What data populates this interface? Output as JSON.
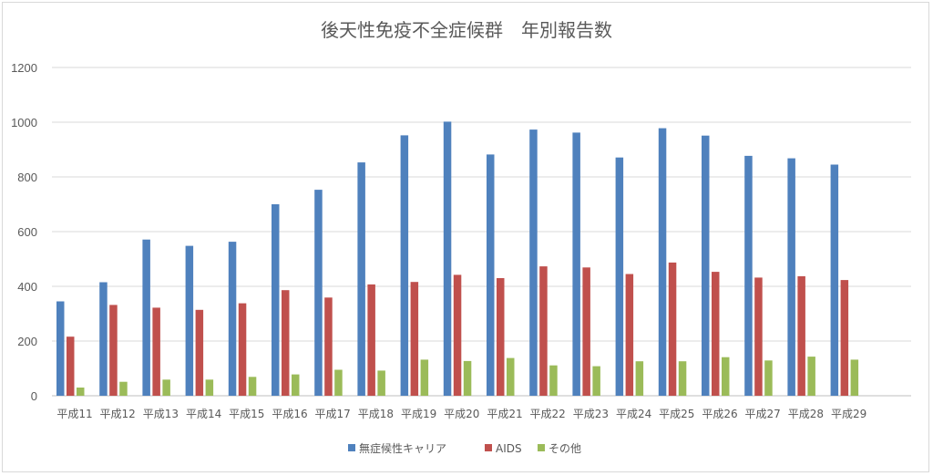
{
  "chart_data": {
    "type": "bar",
    "title": "後天性免疫不全症候群　年別報告数",
    "xlabel": "",
    "ylabel": "",
    "ylim": [
      0,
      1200
    ],
    "yticks": [
      0,
      200,
      400,
      600,
      800,
      1000,
      1200
    ],
    "grid": true,
    "legend_position": "bottom",
    "categories": [
      "平成11",
      "平成12",
      "平成13",
      "平成14",
      "平成15",
      "平成16",
      "平成17",
      "平成18",
      "平成19",
      "平成20",
      "平成21",
      "平成22",
      "平成23",
      "平成24",
      "平成25",
      "平成26",
      "平成27",
      "平成28",
      "平成29"
    ],
    "series": [
      {
        "name": "無症候性キャリア",
        "color": "#4f81bd",
        "values": [
          345,
          415,
          571,
          548,
          563,
          700,
          753,
          853,
          952,
          1002,
          882,
          973,
          962,
          871,
          978,
          951,
          877,
          868,
          845
        ]
      },
      {
        "name": "AIDS",
        "color": "#c0504d",
        "values": [
          216,
          332,
          322,
          314,
          338,
          386,
          359,
          407,
          416,
          442,
          430,
          473,
          469,
          445,
          487,
          453,
          432,
          437,
          423
        ]
      },
      {
        "name": "その他",
        "color": "#9bbb59",
        "values": [
          30,
          51,
          59,
          59,
          69,
          78,
          95,
          92,
          132,
          127,
          138,
          111,
          108,
          126,
          126,
          141,
          129,
          143,
          132
        ]
      }
    ]
  }
}
